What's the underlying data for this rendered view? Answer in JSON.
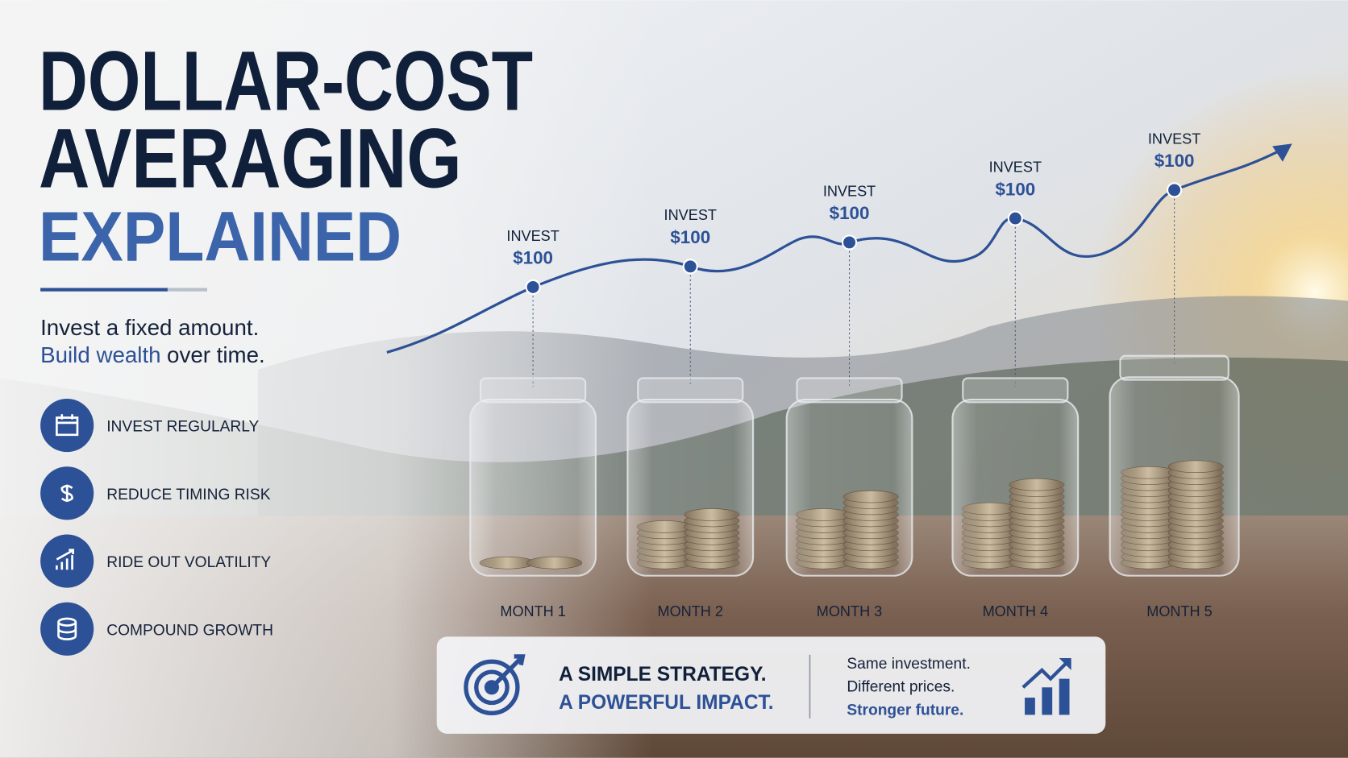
{
  "title": {
    "line1": "DOLLAR-COST",
    "line2": "AVERAGING",
    "line3": "EXPLAINED"
  },
  "tagline": {
    "line1": "Invest a fixed amount.",
    "highlight": "Build wealth",
    "rest": "over time."
  },
  "features": [
    "INVEST REGULARLY",
    "REDUCE TIMING RISK",
    "RIDE OUT VOLATILITY",
    "COMPOUND GROWTH"
  ],
  "steps": [
    {
      "label": "INVEST",
      "amount": "$100",
      "month": "MONTH 1"
    },
    {
      "label": "INVEST",
      "amount": "$100",
      "month": "MONTH 2"
    },
    {
      "label": "INVEST",
      "amount": "$100",
      "month": "MONTH 3"
    },
    {
      "label": "INVEST",
      "amount": "$100",
      "month": "MONTH 4"
    },
    {
      "label": "INVEST",
      "amount": "$100",
      "month": "MONTH 5"
    }
  ],
  "banner": {
    "headline1": "A SIMPLE STRATEGY.",
    "headline2": "A POWERFUL IMPACT.",
    "notes": [
      "Same investment.",
      "Different prices.",
      "Stronger future."
    ]
  }
}
